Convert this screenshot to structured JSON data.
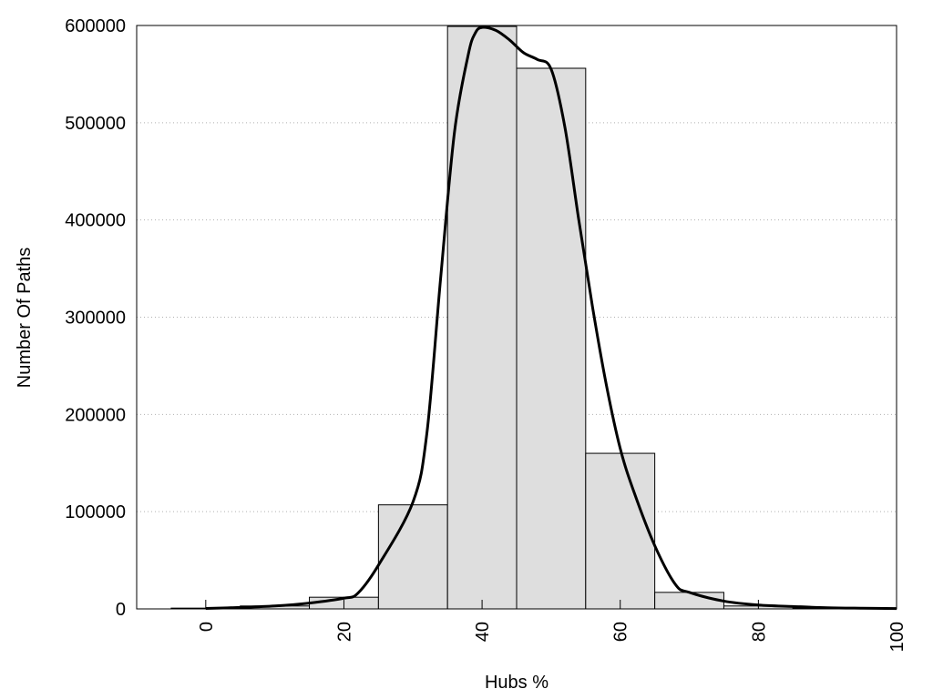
{
  "chart_data": {
    "type": "bar",
    "title": "",
    "xlabel": "Hubs %",
    "ylabel": "Number Of Paths",
    "xlim": [
      -10,
      100
    ],
    "ylim": [
      0,
      600000
    ],
    "x_ticks": [
      0,
      20,
      40,
      60,
      80,
      100
    ],
    "y_ticks": [
      0,
      100000,
      200000,
      300000,
      400000,
      500000,
      600000
    ],
    "grid": "horizontal dotted",
    "bar_width": 10,
    "bars": [
      {
        "x": 0,
        "value": 800
      },
      {
        "x": 10,
        "value": 3000
      },
      {
        "x": 20,
        "value": 12000
      },
      {
        "x": 30,
        "value": 107000
      },
      {
        "x": 40,
        "value": 599000
      },
      {
        "x": 50,
        "value": 556000
      },
      {
        "x": 60,
        "value": 160000
      },
      {
        "x": 70,
        "value": 17000
      },
      {
        "x": 80,
        "value": 3000
      },
      {
        "x": 90,
        "value": 800
      }
    ],
    "curve": {
      "x": [
        0,
        5,
        10,
        15,
        20,
        22,
        25,
        30,
        32,
        34,
        36,
        38,
        39,
        40,
        42,
        44,
        46,
        48,
        50,
        52,
        54,
        56,
        58,
        60,
        62,
        65,
        68,
        70,
        75,
        80,
        85,
        90,
        95,
        100
      ],
      "y": [
        500,
        1500,
        3000,
        6000,
        11000,
        16000,
        45000,
        110000,
        180000,
        340000,
        490000,
        570000,
        592000,
        598000,
        595000,
        585000,
        572000,
        565000,
        555000,
        495000,
        400000,
        310000,
        230000,
        165000,
        120000,
        65000,
        25000,
        17000,
        8000,
        4000,
        2500,
        1200,
        700,
        400
      ]
    },
    "colors": {
      "bar_fill": "#dedede",
      "bar_stroke": "#000000",
      "curve": "#000000",
      "grid": "#b0b0b0"
    }
  }
}
